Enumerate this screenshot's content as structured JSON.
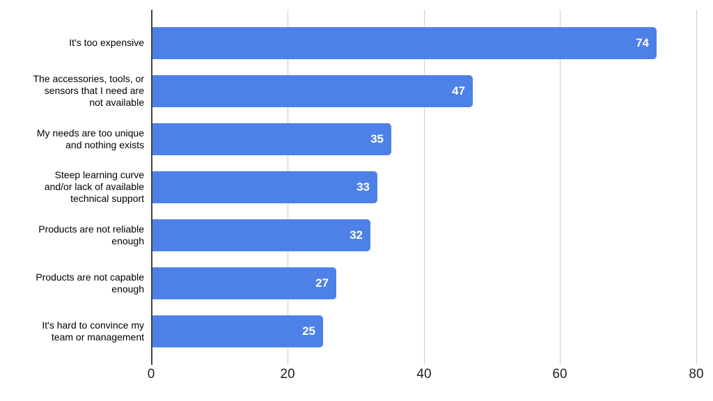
{
  "chart_data": {
    "type": "bar",
    "orientation": "horizontal",
    "title": "",
    "xlabel": "",
    "ylabel": "",
    "legend": "none",
    "grid": true,
    "categories": [
      "It's too expensive",
      "The accessories, tools, or\nsensors that I need are\nnot available",
      "My needs are too unique\nand nothing exists",
      "Steep learning curve\nand/or lack of available\ntechnical support",
      "Products are not reliable\nenough",
      "Products are not capable\nenough",
      "It's hard to convince my\nteam or management"
    ],
    "values": [
      74,
      47,
      35,
      33,
      32,
      27,
      25
    ],
    "value_labels": [
      "74",
      "47",
      "35",
      "33",
      "32",
      "27",
      "25"
    ],
    "x_ticks": [
      0,
      20,
      40,
      60,
      80
    ],
    "x_tick_labels": [
      "0",
      "20",
      "40",
      "60",
      "80"
    ],
    "xlim": [
      0,
      80
    ],
    "colors": {
      "bar": "#4d81e8",
      "value_label": "#ffffff",
      "gridline": "#cccccc",
      "axis_line": "#424242",
      "tick_label": "#1f1f1f",
      "category_label": "#000000",
      "background": "#ffffff"
    }
  }
}
